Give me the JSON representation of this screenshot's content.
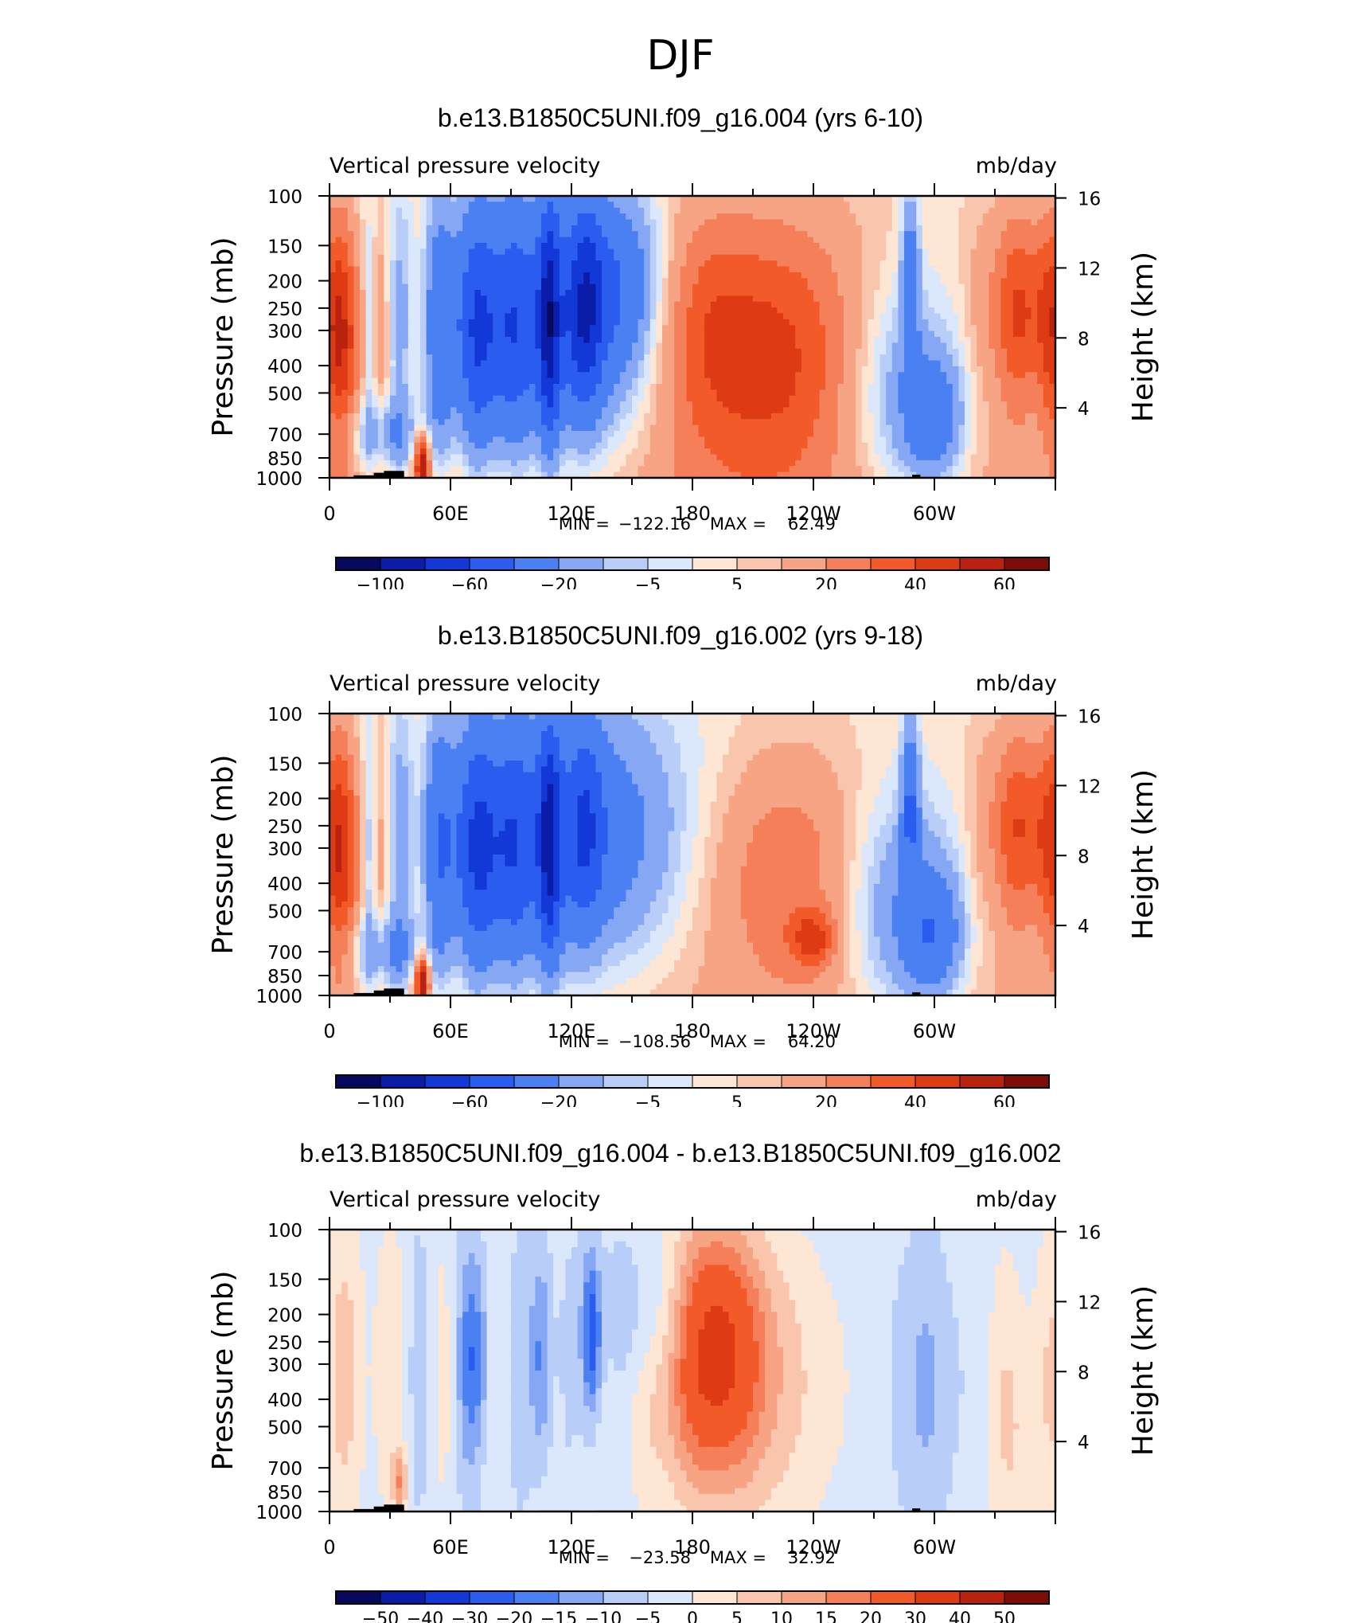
{
  "page_title": "DJF",
  "colors": {
    "main": [
      "#08085e",
      "#0a1ca8",
      "#1238d8",
      "#2a5cf0",
      "#4a80f2",
      "#86a8f4",
      "#b8cdf7",
      "#dbe7fb",
      "#fde6d4",
      "#f9c6ad",
      "#f6a484",
      "#f47f58",
      "#f25a2a",
      "#de3a14",
      "#ba2210",
      "#7d0b06"
    ],
    "diff": [
      "#08085e",
      "#0a1ca8",
      "#1238d8",
      "#2a5cf0",
      "#4a80f2",
      "#86a8f4",
      "#b8cdf7",
      "#dbe7fb",
      "#fde6d4",
      "#f9c6ad",
      "#f6a484",
      "#f47f58",
      "#f25a2a",
      "#de3a14",
      "#ba2210",
      "#7d0b06"
    ],
    "frame": "#000000"
  },
  "chart_data": [
    {
      "type": "heatmap",
      "title": "b.e13.B1850C5UNI.f09_g16.004 (yrs 6-10)",
      "left_string": "Vertical pressure velocity",
      "right_string": "mb/day",
      "ylabel": "Pressure (mb)",
      "ylabel_right": "Height (km)",
      "x_ticks": [
        "0",
        "60E",
        "120E",
        "180",
        "120W",
        "60W"
      ],
      "y_ticks": [
        "100",
        "150",
        "200",
        "250",
        "300",
        "400",
        "500",
        "700",
        "850",
        "1000"
      ],
      "y_right_ticks": [
        "16",
        "12",
        "8",
        "4"
      ],
      "stats": {
        "min_label": "MIN =",
        "min": "−122.16",
        "max_label": "MAX =",
        "max": "62.49"
      },
      "colorbar_labels": [
        "−100",
        "−60",
        "−20",
        "−5",
        "5",
        "20",
        "40",
        "60"
      ],
      "levels": [
        -120,
        -100,
        -80,
        -60,
        -40,
        -20,
        -10,
        -5,
        0,
        5,
        10,
        20,
        30,
        40,
        50,
        60
      ],
      "xlim": [
        0,
        360
      ],
      "ylim_mb": [
        1000,
        100
      ]
    },
    {
      "type": "heatmap",
      "title": "b.e13.B1850C5UNI.f09_g16.002 (yrs 9-18)",
      "left_string": "Vertical pressure velocity",
      "right_string": "mb/day",
      "ylabel": "Pressure (mb)",
      "ylabel_right": "Height (km)",
      "x_ticks": [
        "0",
        "60E",
        "120E",
        "180",
        "120W",
        "60W"
      ],
      "y_ticks": [
        "100",
        "150",
        "200",
        "250",
        "300",
        "400",
        "500",
        "700",
        "850",
        "1000"
      ],
      "y_right_ticks": [
        "16",
        "12",
        "8",
        "4"
      ],
      "stats": {
        "min_label": "MIN =",
        "min": "−108.56",
        "max_label": "MAX =",
        "max": "64.20"
      },
      "colorbar_labels": [
        "−100",
        "−60",
        "−20",
        "−5",
        "5",
        "20",
        "40",
        "60"
      ],
      "levels": [
        -120,
        -100,
        -80,
        -60,
        -40,
        -20,
        -10,
        -5,
        0,
        5,
        10,
        20,
        30,
        40,
        50,
        60
      ],
      "xlim": [
        0,
        360
      ],
      "ylim_mb": [
        1000,
        100
      ]
    },
    {
      "type": "heatmap",
      "title": "b.e13.B1850C5UNI.f09_g16.004 - b.e13.B1850C5UNI.f09_g16.002",
      "left_string": "Vertical pressure velocity",
      "right_string": "mb/day",
      "ylabel": "Pressure (mb)",
      "ylabel_right": "Height (km)",
      "x_ticks": [
        "0",
        "60E",
        "120E",
        "180",
        "120W",
        "60W"
      ],
      "y_ticks": [
        "100",
        "150",
        "200",
        "250",
        "300",
        "400",
        "500",
        "700",
        "850",
        "1000"
      ],
      "y_right_ticks": [
        "16",
        "12",
        "8",
        "4"
      ],
      "stats": {
        "min_label": "MIN =",
        "min": "−23.58",
        "max_label": "MAX =",
        "max": "32.92"
      },
      "colorbar_labels": [
        "−50",
        "−40",
        "−30",
        "−20",
        "−15",
        "−10",
        "−5",
        "0",
        "5",
        "10",
        "15",
        "20",
        "30",
        "40",
        "50"
      ],
      "levels": [
        -60,
        -50,
        -40,
        -30,
        -20,
        -15,
        -10,
        -5,
        0,
        5,
        10,
        15,
        20,
        30,
        40,
        50
      ],
      "xlim": [
        0,
        360
      ],
      "ylim_mb": [
        1000,
        100
      ]
    }
  ]
}
